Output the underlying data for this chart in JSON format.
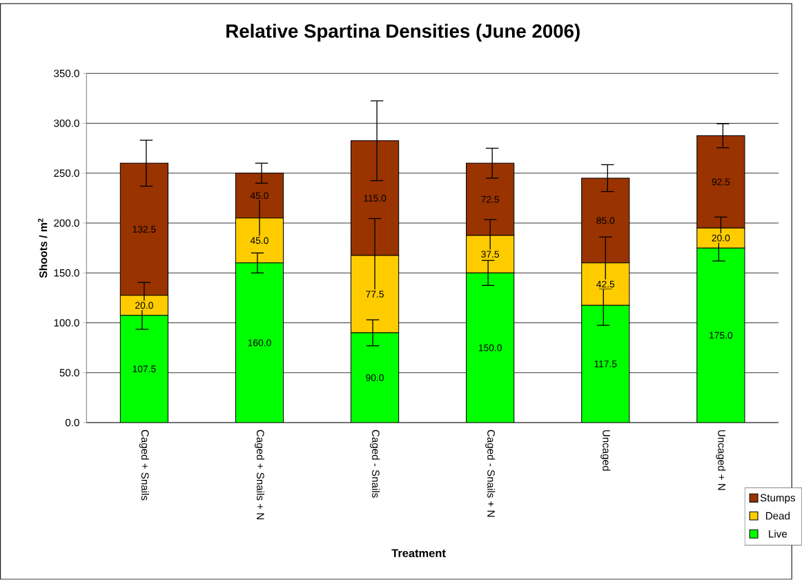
{
  "chart_data": {
    "type": "bar",
    "title": "Relative Spartina Densities (June 2006)",
    "xlabel": "Treatment",
    "ylabel": "Shoots / m$^{2}$",
    "categories": [
      "Caged + Snails",
      "Caged + Snails + N",
      "Caged - Snails",
      "Caged - Snails + N",
      "Uncaged",
      "Uncaged + N"
    ],
    "stacked": true,
    "series": [
      {
        "name": "Live",
        "color": "#00ff00",
        "values": [
          107.5,
          160.0,
          90.0,
          150.0,
          117.5,
          175.0
        ],
        "errors": [
          14,
          10,
          13,
          12.5,
          20,
          13
        ],
        "value_labels": [
          "107.5",
          "160.0",
          "90.0",
          "150.0",
          "117.5",
          "175.0"
        ]
      },
      {
        "name": "Dead",
        "color": "#ffcc00",
        "values": [
          20.0,
          45.0,
          77.5,
          37.5,
          42.5,
          20.0
        ],
        "errors": [
          13,
          20,
          37,
          16,
          26,
          11
        ],
        "value_labels": [
          "20.0",
          "45.0",
          "77.5",
          "37.5",
          "42.5",
          "20.0"
        ]
      },
      {
        "name": "Stumps",
        "color": "#993300",
        "values": [
          132.5,
          45.0,
          115.0,
          72.5,
          85.0,
          92.5
        ],
        "errors": [
          23,
          10,
          40,
          15,
          13.5,
          12
        ],
        "value_labels": [
          "132.5",
          "45.0",
          "115.0",
          "72.5",
          "85.0",
          "92.5"
        ]
      }
    ],
    "ylim": [
      0,
      350
    ],
    "yticks": [
      {
        "value": 0,
        "label": "0.0"
      },
      {
        "value": 50,
        "label": "50.0"
      },
      {
        "value": 100,
        "label": "100.0"
      },
      {
        "value": 150,
        "label": "150.0"
      },
      {
        "value": 200,
        "label": "200.0"
      },
      {
        "value": 250,
        "label": "250.0"
      },
      {
        "value": 300,
        "label": "300.0"
      },
      {
        "value": 350,
        "label": "350.0"
      }
    ],
    "grid": "y",
    "legend": "bottom right"
  }
}
